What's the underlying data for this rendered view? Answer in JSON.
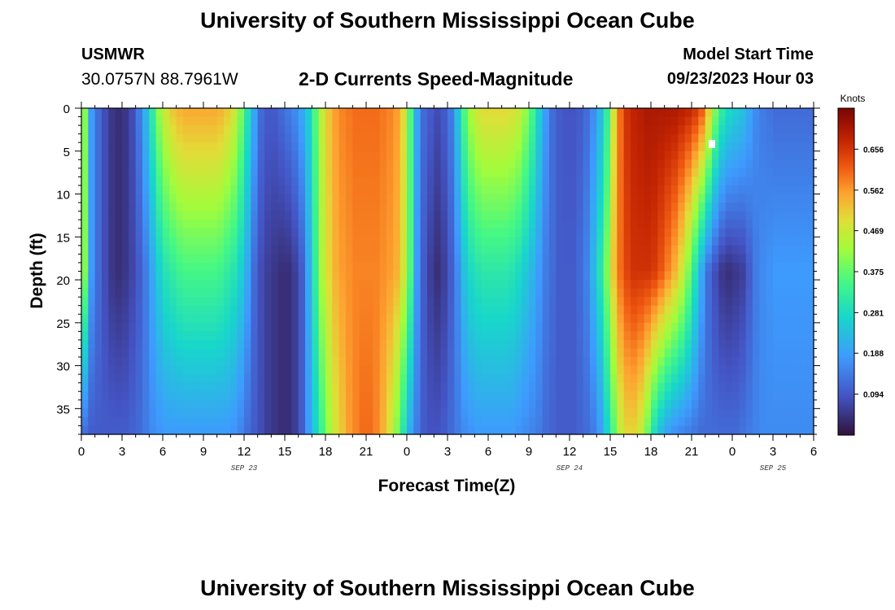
{
  "header": {
    "title": "University of Southern Mississippi Ocean Cube",
    "station_id": "USMWR",
    "station_coords": "30.0757N  88.7961W",
    "subtitle": "2-D Currents Speed-Magnitude",
    "model_start_label": "Model Start Time",
    "model_start_value": "09/23/2023 Hour 03"
  },
  "footer": {
    "title": "University of Southern Mississippi Ocean Cube"
  },
  "chart_data": {
    "type": "heatmap",
    "title": "2-D Currents Speed-Magnitude",
    "xlabel": "Forecast Time(Z)",
    "ylabel": "Depth (ft)",
    "x_range_hours": [
      0,
      54
    ],
    "x_tick_labels": [
      "0",
      "3",
      "6",
      "9",
      "12",
      "15",
      "18",
      "21",
      "0",
      "3",
      "6",
      "9",
      "12",
      "15",
      "18",
      "21",
      "0",
      "3",
      "6"
    ],
    "date_labels": [
      {
        "label": "SEP 23",
        "hour": 12
      },
      {
        "label": "SEP 24",
        "hour": 36
      },
      {
        "label": "SEP 25",
        "hour": 51
      }
    ],
    "y_range_ft": [
      0,
      38
    ],
    "y_tick_values": [
      0,
      5,
      10,
      15,
      20,
      25,
      30,
      35
    ],
    "colorbar": {
      "label": "Knots",
      "range": [
        0,
        0.75
      ],
      "tick_values": [
        0.094,
        0.188,
        0.281,
        0.375,
        0.469,
        0.562,
        0.656
      ],
      "tick_labels": [
        "0.094",
        "0.188",
        "0.281",
        "0.375",
        "0.469",
        "0.562",
        "0.656"
      ]
    },
    "profile_knots": {
      "time_hours": [
        0,
        0.5,
        1,
        1.5,
        2,
        2.5,
        3,
        3.5,
        4,
        4.5,
        5,
        5.5,
        6,
        6.5,
        7,
        7.5,
        8,
        8.5,
        9,
        9.5,
        10,
        10.5,
        11,
        11.5,
        12,
        12.5,
        13,
        13.5,
        14,
        14.5,
        15,
        15.5,
        16,
        16.5,
        17,
        17.5,
        18,
        18.5,
        19,
        19.5,
        20,
        20.5,
        21,
        21.5,
        22,
        22.5,
        23,
        23.5,
        24,
        24.5,
        25,
        25.5,
        26,
        26.5,
        27,
        27.5,
        28,
        28.5,
        29,
        29.5,
        30,
        30.5,
        31,
        31.5,
        32,
        32.5,
        33,
        33.5,
        34,
        34.5,
        35,
        35.5,
        36,
        36.5,
        37,
        37.5,
        38,
        38.5,
        39,
        39.5,
        40,
        40.5,
        41,
        41.5,
        42,
        42.5,
        43,
        43.5,
        44,
        44.5,
        45,
        45.5,
        46,
        46.5,
        47,
        47.5,
        48,
        48.5,
        49,
        49.5,
        50,
        50.5,
        51,
        51.5,
        52,
        52.5,
        53,
        53.5,
        54
      ],
      "surface": [
        0.4,
        0.18,
        0.12,
        0.08,
        0.05,
        0.04,
        0.05,
        0.08,
        0.14,
        0.22,
        0.32,
        0.42,
        0.48,
        0.52,
        0.54,
        0.55,
        0.55,
        0.55,
        0.55,
        0.55,
        0.54,
        0.52,
        0.48,
        0.4,
        0.3,
        0.2,
        0.12,
        0.1,
        0.1,
        0.12,
        0.14,
        0.16,
        0.2,
        0.26,
        0.36,
        0.46,
        0.52,
        0.56,
        0.58,
        0.59,
        0.6,
        0.6,
        0.6,
        0.6,
        0.59,
        0.58,
        0.56,
        0.5,
        0.36,
        0.2,
        0.12,
        0.1,
        0.08,
        0.1,
        0.14,
        0.24,
        0.36,
        0.44,
        0.48,
        0.5,
        0.5,
        0.5,
        0.5,
        0.49,
        0.47,
        0.42,
        0.35,
        0.26,
        0.18,
        0.12,
        0.1,
        0.09,
        0.09,
        0.1,
        0.12,
        0.16,
        0.22,
        0.32,
        0.48,
        0.6,
        0.66,
        0.68,
        0.69,
        0.7,
        0.7,
        0.7,
        0.7,
        0.7,
        0.69,
        0.68,
        0.66,
        0.62,
        0.52,
        0.4,
        0.32,
        0.28,
        0.26,
        0.24,
        0.2,
        0.16,
        0.14,
        0.13,
        0.12,
        0.12,
        0.12,
        0.12,
        0.12,
        0.12,
        0.12
      ],
      "mid": [
        0.4,
        0.18,
        0.12,
        0.08,
        0.05,
        0.04,
        0.05,
        0.07,
        0.1,
        0.14,
        0.2,
        0.26,
        0.3,
        0.32,
        0.34,
        0.35,
        0.35,
        0.35,
        0.35,
        0.35,
        0.34,
        0.32,
        0.3,
        0.26,
        0.2,
        0.12,
        0.08,
        0.06,
        0.05,
        0.04,
        0.04,
        0.06,
        0.1,
        0.2,
        0.32,
        0.44,
        0.5,
        0.54,
        0.56,
        0.57,
        0.58,
        0.58,
        0.58,
        0.58,
        0.57,
        0.56,
        0.54,
        0.48,
        0.36,
        0.18,
        0.1,
        0.06,
        0.04,
        0.06,
        0.1,
        0.16,
        0.24,
        0.28,
        0.3,
        0.31,
        0.31,
        0.31,
        0.31,
        0.3,
        0.28,
        0.25,
        0.22,
        0.18,
        0.14,
        0.12,
        0.1,
        0.1,
        0.1,
        0.12,
        0.15,
        0.22,
        0.3,
        0.4,
        0.52,
        0.6,
        0.64,
        0.66,
        0.66,
        0.66,
        0.65,
        0.62,
        0.58,
        0.54,
        0.48,
        0.4,
        0.3,
        0.2,
        0.12,
        0.08,
        0.05,
        0.04,
        0.05,
        0.06,
        0.1,
        0.14,
        0.16,
        0.17,
        0.18,
        0.18,
        0.18,
        0.18,
        0.18,
        0.18,
        0.18
      ],
      "bottom": [
        0.12,
        0.1,
        0.1,
        0.1,
        0.1,
        0.1,
        0.1,
        0.11,
        0.12,
        0.14,
        0.16,
        0.17,
        0.18,
        0.18,
        0.18,
        0.18,
        0.18,
        0.18,
        0.18,
        0.18,
        0.18,
        0.18,
        0.17,
        0.15,
        0.12,
        0.1,
        0.08,
        0.06,
        0.05,
        0.04,
        0.04,
        0.06,
        0.1,
        0.18,
        0.26,
        0.34,
        0.42,
        0.48,
        0.52,
        0.56,
        0.58,
        0.6,
        0.6,
        0.58,
        0.54,
        0.48,
        0.4,
        0.3,
        0.2,
        0.14,
        0.1,
        0.09,
        0.09,
        0.1,
        0.12,
        0.14,
        0.16,
        0.17,
        0.18,
        0.18,
        0.18,
        0.18,
        0.18,
        0.18,
        0.17,
        0.16,
        0.15,
        0.14,
        0.12,
        0.11,
        0.1,
        0.1,
        0.1,
        0.11,
        0.12,
        0.14,
        0.18,
        0.26,
        0.36,
        0.46,
        0.5,
        0.5,
        0.46,
        0.38,
        0.28,
        0.22,
        0.18,
        0.16,
        0.15,
        0.14,
        0.13,
        0.12,
        0.12,
        0.12,
        0.12,
        0.12,
        0.12,
        0.13,
        0.14,
        0.15,
        0.16,
        0.16,
        0.16,
        0.16,
        0.16,
        0.16,
        0.16,
        0.16,
        0.16
      ]
    }
  }
}
